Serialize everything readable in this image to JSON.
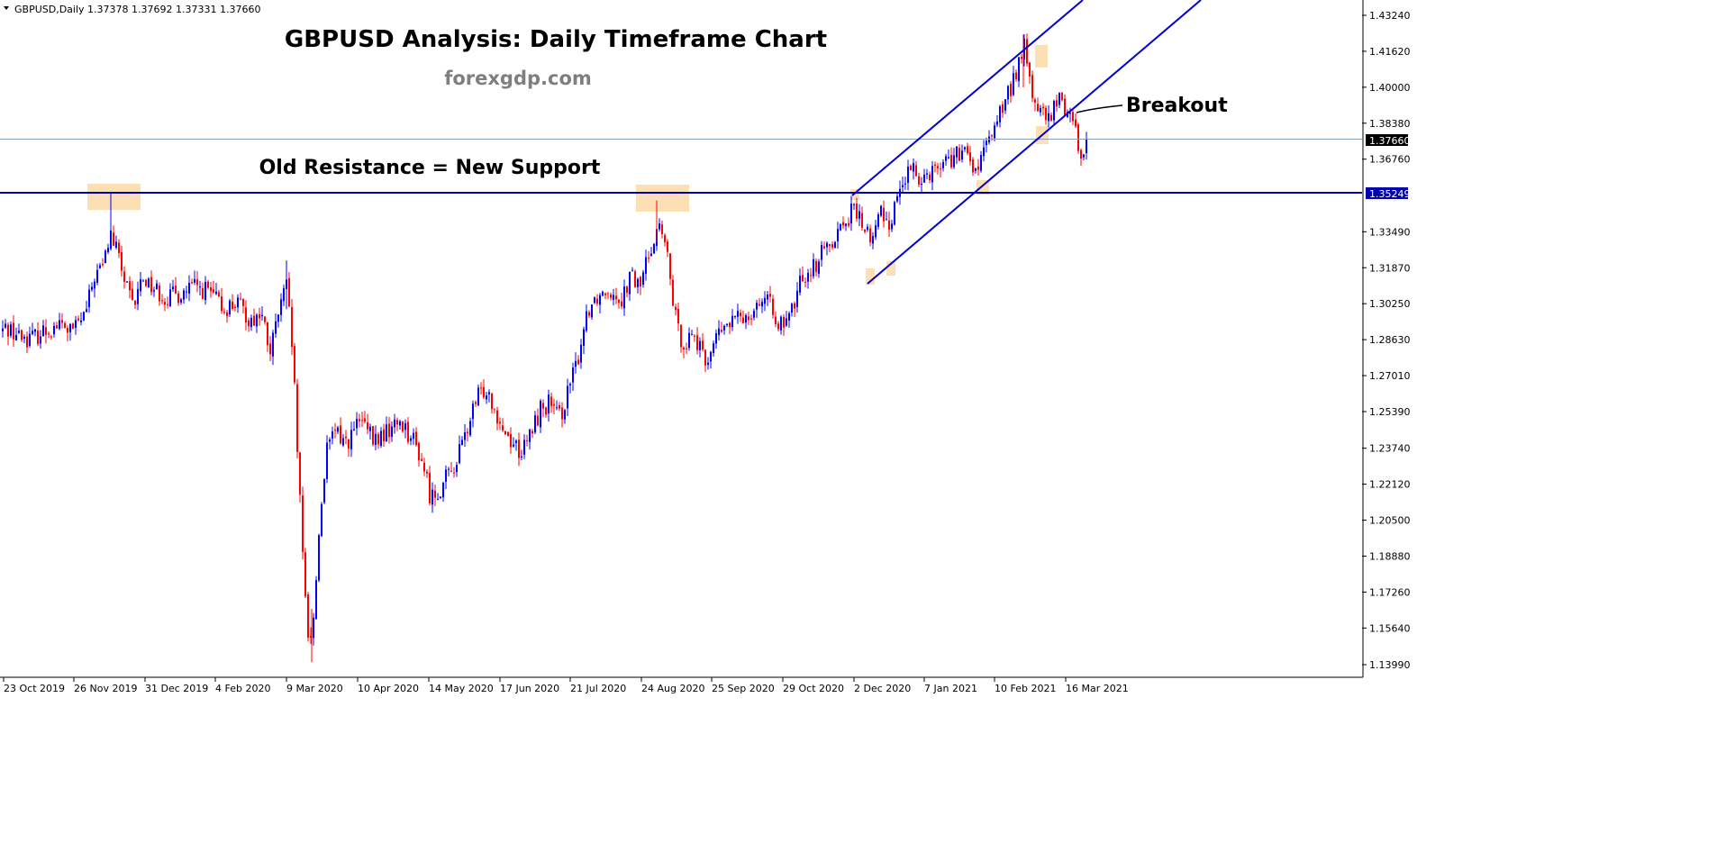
{
  "header": {
    "symbol_line": "GBPUSD,Daily  1.37378 1.37692 1.37331 1.37660"
  },
  "chart_data": {
    "type": "candlestick",
    "title": "GBPUSD Analysis: Daily Timeframe Chart",
    "subtitle": "forexgdp.com",
    "annotations": {
      "support_label": "Old Resistance = New Support",
      "breakout_label": "Breakout"
    },
    "ylim": [
      1.1325,
      1.4364
    ],
    "y_ticks": [
      "1.43240",
      "1.41620",
      "1.40000",
      "1.38380",
      "1.36760",
      "1.35249",
      "1.33490",
      "1.31870",
      "1.30250",
      "1.28630",
      "1.27010",
      "1.25390",
      "1.23740",
      "1.22120",
      "1.20500",
      "1.18880",
      "1.17260",
      "1.15640",
      "1.13990"
    ],
    "current_price": "1.37660",
    "support_level": "1.35249",
    "x_ticks": [
      "23 Oct 2019",
      "26 Nov 2019",
      "31 Dec 2019",
      "4 Feb 2020",
      "9 Mar 2020",
      "10 Apr 2020",
      "14 May 2020",
      "17 Jun 2020",
      "21 Jul 2020",
      "24 Aug 2020",
      "25 Sep 2020",
      "29 Oct 2020",
      "2 Dec 2020",
      "7 Jan 2021",
      "10 Feb 2021",
      "16 Mar 2021"
    ],
    "path_anchors": [
      [
        0,
        1.29
      ],
      [
        10,
        1.292
      ],
      [
        20,
        1.288
      ],
      [
        35,
        1.287
      ],
      [
        48,
        1.29
      ],
      [
        65,
        1.293
      ],
      [
        80,
        1.29
      ],
      [
        95,
        1.298
      ],
      [
        105,
        1.315
      ],
      [
        115,
        1.32
      ],
      [
        122,
        1.334
      ],
      [
        130,
        1.326
      ],
      [
        140,
        1.31
      ],
      [
        148,
        1.3
      ],
      [
        158,
        1.315
      ],
      [
        170,
        1.31
      ],
      [
        185,
        1.305
      ],
      [
        200,
        1.307
      ],
      [
        215,
        1.31
      ],
      [
        232,
        1.308
      ],
      [
        248,
        1.3
      ],
      [
        262,
        1.303
      ],
      [
        278,
        1.295
      ],
      [
        290,
        1.298
      ],
      [
        300,
        1.28
      ],
      [
        310,
        1.3
      ],
      [
        318,
        1.31
      ],
      [
        325,
        1.28
      ],
      [
        332,
        1.22
      ],
      [
        337,
        1.18
      ],
      [
        343,
        1.15
      ],
      [
        348,
        1.16
      ],
      [
        355,
        1.205
      ],
      [
        362,
        1.235
      ],
      [
        372,
        1.245
      ],
      [
        385,
        1.24
      ],
      [
        400,
        1.25
      ],
      [
        415,
        1.24
      ],
      [
        430,
        1.245
      ],
      [
        445,
        1.25
      ],
      [
        460,
        1.24
      ],
      [
        470,
        1.23
      ],
      [
        478,
        1.215
      ],
      [
        490,
        1.22
      ],
      [
        505,
        1.23
      ],
      [
        518,
        1.245
      ],
      [
        530,
        1.26
      ],
      [
        540,
        1.265
      ],
      [
        550,
        1.255
      ],
      [
        560,
        1.245
      ],
      [
        570,
        1.24
      ],
      [
        580,
        1.235
      ],
      [
        590,
        1.245
      ],
      [
        600,
        1.255
      ],
      [
        610,
        1.258
      ],
      [
        620,
        1.25
      ],
      [
        630,
        1.262
      ],
      [
        640,
        1.275
      ],
      [
        652,
        1.3
      ],
      [
        660,
        1.305
      ],
      [
        675,
        1.31
      ],
      [
        690,
        1.305
      ],
      [
        700,
        1.315
      ],
      [
        710,
        1.31
      ],
      [
        720,
        1.325
      ],
      [
        730,
        1.338
      ],
      [
        738,
        1.33
      ],
      [
        745,
        1.31
      ],
      [
        752,
        1.29
      ],
      [
        760,
        1.285
      ],
      [
        770,
        1.29
      ],
      [
        782,
        1.275
      ],
      [
        792,
        1.285
      ],
      [
        800,
        1.29
      ],
      [
        815,
        1.295
      ],
      [
        830,
        1.298
      ],
      [
        845,
        1.305
      ],
      [
        858,
        1.3
      ],
      [
        870,
        1.29
      ],
      [
        880,
        1.3
      ],
      [
        890,
        1.315
      ],
      [
        905,
        1.32
      ],
      [
        920,
        1.33
      ],
      [
        935,
        1.338
      ],
      [
        948,
        1.345
      ],
      [
        958,
        1.338
      ],
      [
        968,
        1.33
      ],
      [
        978,
        1.345
      ],
      [
        988,
        1.338
      ],
      [
        998,
        1.355
      ],
      [
        1010,
        1.362
      ],
      [
        1025,
        1.36
      ],
      [
        1040,
        1.365
      ],
      [
        1055,
        1.368
      ],
      [
        1070,
        1.37
      ],
      [
        1085,
        1.362
      ],
      [
        1095,
        1.373
      ],
      [
        1105,
        1.385
      ],
      [
        1118,
        1.395
      ],
      [
        1130,
        1.41
      ],
      [
        1137,
        1.418
      ],
      [
        1145,
        1.398
      ],
      [
        1155,
        1.388
      ],
      [
        1165,
        1.385
      ],
      [
        1175,
        1.395
      ],
      [
        1185,
        1.39
      ],
      [
        1192,
        1.385
      ],
      [
        1200,
        1.368
      ],
      [
        1208,
        1.3766
      ]
    ],
    "grid": false
  }
}
